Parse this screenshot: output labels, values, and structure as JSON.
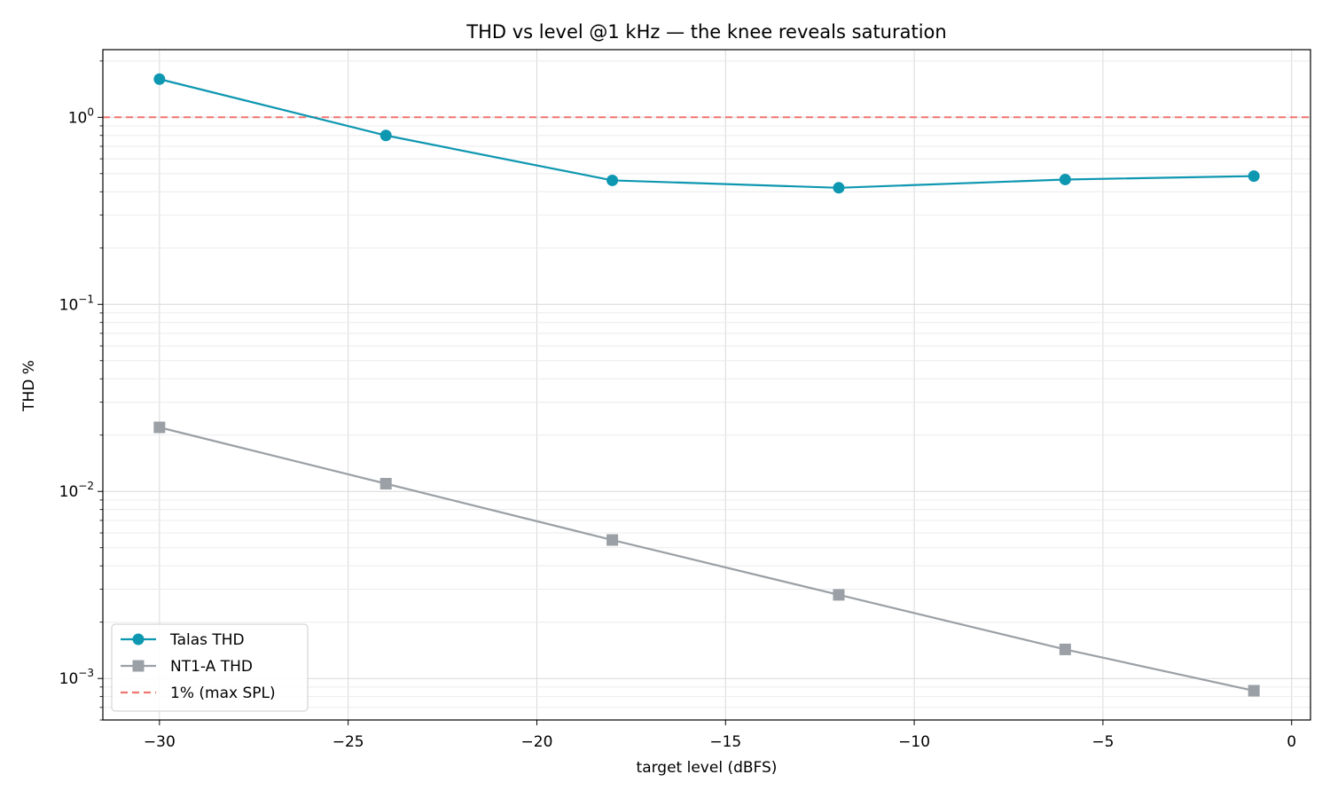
{
  "chart_data": {
    "type": "line",
    "title": "THD vs level @1 kHz — the knee reveals saturation",
    "xlabel": "target level (dBFS)",
    "ylabel": "THD %",
    "xlim": [
      -31.5,
      0.5
    ],
    "ylim": [
      0.0006,
      2.3
    ],
    "yscale": "log",
    "grid": true,
    "legend_position": "lower-left",
    "x_ticks": [
      {
        "value": -30,
        "label": "−30"
      },
      {
        "value": -25,
        "label": "−25"
      },
      {
        "value": -20,
        "label": "−20"
      },
      {
        "value": -15,
        "label": "−15"
      },
      {
        "value": -10,
        "label": "−10"
      },
      {
        "value": -5,
        "label": "−5"
      },
      {
        "value": 0,
        "label": "0"
      }
    ],
    "y_ticks": [
      {
        "value": 1,
        "base": "10",
        "exp": "0"
      },
      {
        "value": 0.1,
        "base": "10",
        "exp": "−1"
      },
      {
        "value": 0.01,
        "base": "10",
        "exp": "−2"
      },
      {
        "value": 0.001,
        "base": "10",
        "exp": "−3"
      }
    ],
    "x": [
      -30,
      -24,
      -18,
      -12,
      -6,
      -1
    ],
    "series": [
      {
        "name": "Talas THD",
        "color": "#0e97b1",
        "marker": "circle",
        "values": [
          1.6,
          0.8,
          0.46,
          0.42,
          0.465,
          0.485
        ]
      },
      {
        "name": "NT1-A THD",
        "color": "#9aa0a6",
        "marker": "square",
        "values": [
          0.022,
          0.011,
          0.0055,
          0.0028,
          0.00143,
          0.00086
        ]
      }
    ],
    "reference_line": {
      "name": "1% (max SPL)",
      "value": 1.0,
      "color": "#f07470",
      "style": "dashed"
    }
  }
}
